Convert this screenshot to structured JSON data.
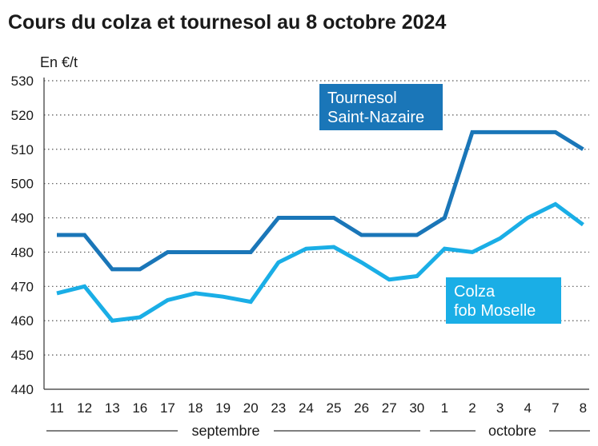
{
  "title": "Cours du colza et tournesol au 8 octobre 2024",
  "unit_label": "En €/t",
  "colors": {
    "tournesol": "#1a76b8",
    "colza": "#1aaee6",
    "axis": "#333333",
    "grid": "#555555"
  },
  "chart_data": {
    "type": "line",
    "title": "Cours du colza et tournesol au 8 octobre 2024",
    "ylabel": "En €/t",
    "ylim": [
      440,
      530
    ],
    "yticks": [
      440,
      450,
      460,
      470,
      480,
      490,
      500,
      510,
      520,
      530
    ],
    "grid": "horizontal dotted",
    "categories": [
      "11",
      "12",
      "13",
      "16",
      "17",
      "18",
      "19",
      "20",
      "23",
      "24",
      "25",
      "26",
      "27",
      "30",
      "1",
      "2",
      "3",
      "4",
      "7",
      "8"
    ],
    "month_groups": [
      {
        "label": "septembre",
        "from": 0,
        "to": 13
      },
      {
        "label": "octobre",
        "from": 14,
        "to": 19
      }
    ],
    "series": [
      {
        "name": "Tournesol Saint-Nazaire",
        "name_lines": [
          "Tournesol",
          "Saint-Nazaire"
        ],
        "color": "#1a76b8",
        "values": [
          485,
          485,
          475,
          475,
          480,
          480,
          480,
          480,
          490,
          490,
          490,
          485,
          485,
          485,
          490,
          515,
          515,
          515,
          515,
          510
        ]
      },
      {
        "name": "Colza fob Moselle",
        "name_lines": [
          "Colza",
          "fob Moselle"
        ],
        "color": "#1aaee6",
        "values": [
          468,
          470,
          460,
          461,
          466,
          468,
          467,
          465.5,
          477,
          481,
          481.5,
          477,
          472,
          473,
          481,
          480,
          484,
          490,
          494,
          488
        ]
      }
    ]
  }
}
